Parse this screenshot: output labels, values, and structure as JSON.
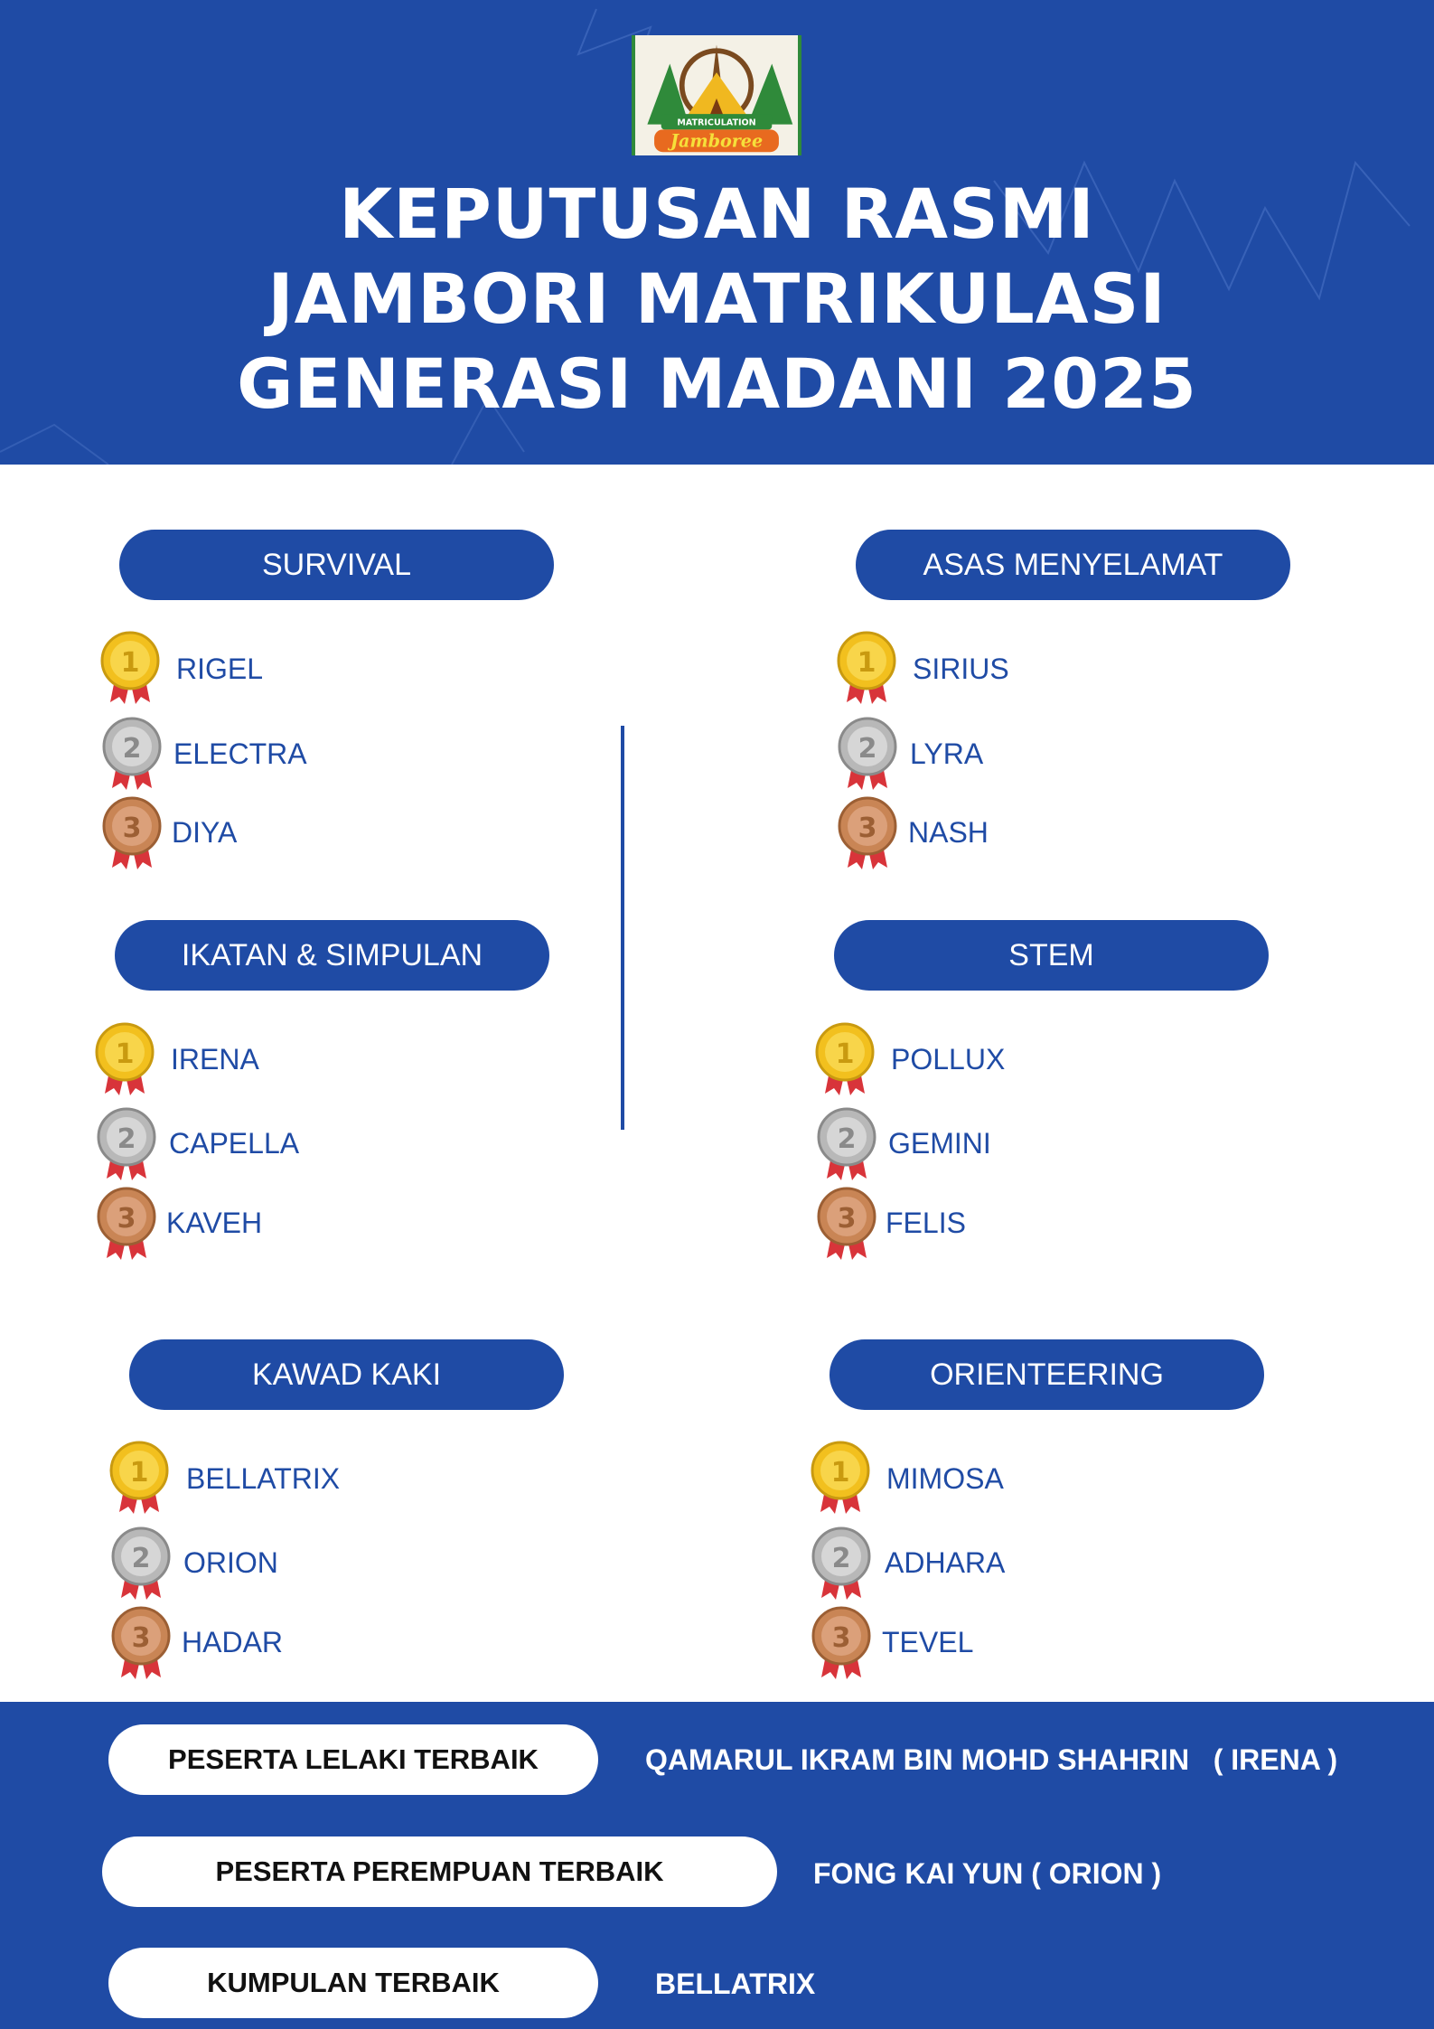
{
  "header": {
    "title_lines": [
      "KEPUTUSAN RASMI",
      "JAMBORI MATRIKULASI",
      "GENERASI MADANI 2025"
    ],
    "logo": {
      "top_text": "MATRICULATION",
      "script_text": "Jamboree"
    }
  },
  "colors": {
    "brand_blue": "#1f4ba5",
    "gold": "#f2c01e",
    "silver": "#b8b8b8",
    "bronze": "#c98555",
    "ribbon": "#d8343a"
  },
  "categories": [
    {
      "name": "SURVIVAL",
      "winners": [
        {
          "rank": "1",
          "name": "RIGEL"
        },
        {
          "rank": "2",
          "name": "ELECTRA"
        },
        {
          "rank": "3",
          "name": "DIYA"
        }
      ]
    },
    {
      "name": "ASAS MENYELAMAT",
      "winners": [
        {
          "rank": "1",
          "name": "SIRIUS"
        },
        {
          "rank": "2",
          "name": "LYRA"
        },
        {
          "rank": "3",
          "name": "NASH"
        }
      ]
    },
    {
      "name": "IKATAN & SIMPULAN",
      "winners": [
        {
          "rank": "1",
          "name": "IRENA"
        },
        {
          "rank": "2",
          "name": "CAPELLA"
        },
        {
          "rank": "3",
          "name": "KAVEH"
        }
      ]
    },
    {
      "name": "STEM",
      "winners": [
        {
          "rank": "1",
          "name": "POLLUX"
        },
        {
          "rank": "2",
          "name": "GEMINI"
        },
        {
          "rank": "3",
          "name": "FELIS"
        }
      ]
    },
    {
      "name": "KAWAD KAKI",
      "winners": [
        {
          "rank": "1",
          "name": "BELLATRIX"
        },
        {
          "rank": "2",
          "name": "ORION"
        },
        {
          "rank": "3",
          "name": "HADAR"
        }
      ]
    },
    {
      "name": "ORIENTEERING",
      "winners": [
        {
          "rank": "1",
          "name": "MIMOSA"
        },
        {
          "rank": "2",
          "name": "ADHARA"
        },
        {
          "rank": "3",
          "name": "TEVEL"
        }
      ]
    }
  ],
  "awards": [
    {
      "label": "PESERTA LELAKI TERBAIK",
      "value": "QAMARUL IKRAM BIN MOHD SHAHRIN   ( IRENA )"
    },
    {
      "label": "PESERTA PEREMPUAN TERBAIK",
      "value": "FONG KAI YUN ( ORION )"
    },
    {
      "label": "KUMPULAN TERBAIK",
      "value": "BELLATRIX"
    }
  ]
}
